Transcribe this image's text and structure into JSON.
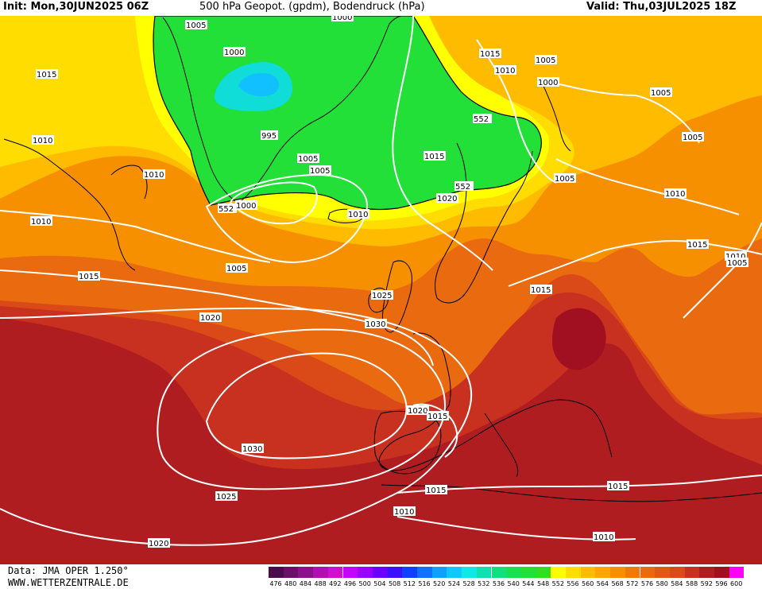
{
  "header": {
    "init": "Init: Mon,30JUN2025 06Z",
    "title": "500 hPa Geopot. (gpdm), Bodendruck (hPa)",
    "valid": "Valid: Thu,03JUL2025 18Z"
  },
  "footer": {
    "data_source": "Data: JMA OPER 1.250°",
    "website": "WWW.WETTERZENTRALE.DE"
  },
  "colors": {
    "c552": "#ffff00",
    "c556": "#ffdd00",
    "c560": "#ffbb00",
    "c568": "#f79000",
    "c576": "#ea6a10",
    "c584": "#d94a18",
    "c588": "#c83020",
    "c592": "#b01d20",
    "green": "#22e038",
    "cyan": "#10dcd8",
    "isobar": "#ffffff",
    "coast": "#000000"
  },
  "scale": {
    "labels": [
      "476",
      "480",
      "484",
      "488",
      "492",
      "496",
      "500",
      "504",
      "508",
      "512",
      "516",
      "520",
      "524",
      "528",
      "532",
      "536",
      "540",
      "544",
      "548",
      "552",
      "556",
      "560",
      "564",
      "568",
      "572",
      "576",
      "580",
      "584",
      "588",
      "592",
      "596",
      "600"
    ],
    "colors": [
      "#4b0a4b",
      "#6a0e6a",
      "#8c108c",
      "#b010b0",
      "#d010d0",
      "#c400ff",
      "#9a00ff",
      "#6a00ff",
      "#3a10ff",
      "#1040ff",
      "#1070ff",
      "#10a0ff",
      "#10c8ff",
      "#10e8e8",
      "#10e0b0",
      "#12e080",
      "#18e050",
      "#22e038",
      "#30e020",
      "#ffff00",
      "#ffdd00",
      "#ffbb00",
      "#ffa500",
      "#f79000",
      "#f07a08",
      "#ea6a10",
      "#e05a14",
      "#d94a18",
      "#c83020",
      "#b01d20",
      "#a01020",
      "#ff00ff"
    ]
  },
  "geopotential_labels": [
    {
      "text": "552"
    },
    {
      "text": "552"
    },
    {
      "text": "552"
    }
  ],
  "isobar_labels": [
    {
      "text": "1005"
    },
    {
      "text": "1000"
    },
    {
      "text": "1015"
    },
    {
      "text": "1010"
    },
    {
      "text": "1010"
    },
    {
      "text": "1010"
    },
    {
      "text": "995"
    },
    {
      "text": "1005"
    },
    {
      "text": "1005"
    },
    {
      "text": "1000"
    },
    {
      "text": "1015"
    },
    {
      "text": "1020"
    },
    {
      "text": "1010"
    },
    {
      "text": "1005"
    },
    {
      "text": "1015"
    },
    {
      "text": "1010"
    },
    {
      "text": "1005"
    },
    {
      "text": "1000"
    },
    {
      "text": "1005"
    },
    {
      "text": "1005"
    },
    {
      "text": "1005"
    },
    {
      "text": "1010"
    },
    {
      "text": "1015"
    },
    {
      "text": "1010"
    },
    {
      "text": "1005"
    },
    {
      "text": "1015"
    },
    {
      "text": "1015"
    },
    {
      "text": "1025"
    },
    {
      "text": "1030"
    },
    {
      "text": "1020"
    },
    {
      "text": "1020"
    },
    {
      "text": "1015"
    },
    {
      "text": "1030"
    },
    {
      "text": "1025"
    },
    {
      "text": "1015"
    },
    {
      "text": "1010"
    },
    {
      "text": "1015"
    },
    {
      "text": "1010"
    },
    {
      "text": "1020"
    },
    {
      "text": "1000"
    }
  ]
}
